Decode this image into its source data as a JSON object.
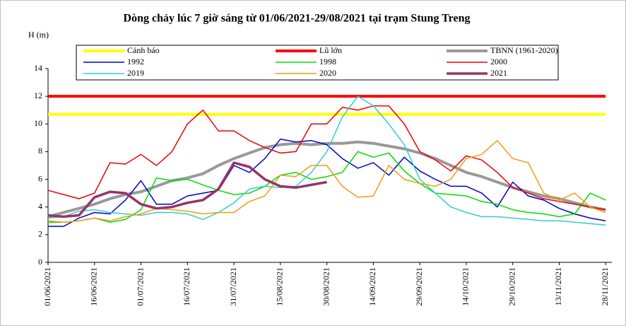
{
  "chart_data": {
    "type": "line",
    "title": "Dòng chảy lúc 7 giờ sáng từ 01/06/2021-29/08/2021 tại trạm Stung Treng",
    "y_label": "H (m)",
    "x": [
      "2021-06-01",
      "2021-06-06",
      "2021-06-11",
      "2021-06-16",
      "2021-06-21",
      "2021-06-26",
      "2021-07-01",
      "2021-07-06",
      "2021-07-11",
      "2021-07-16",
      "2021-07-21",
      "2021-07-26",
      "2021-07-31",
      "2021-08-05",
      "2021-08-10",
      "2021-08-15",
      "2021-08-20",
      "2021-08-25",
      "2021-08-30",
      "2021-09-04",
      "2021-09-09",
      "2021-09-14",
      "2021-09-19",
      "2021-09-24",
      "2021-09-29",
      "2021-10-04",
      "2021-10-09",
      "2021-10-14",
      "2021-10-19",
      "2021-10-24",
      "2021-10-29",
      "2021-11-03",
      "2021-11-08",
      "2021-11-13",
      "2021-11-18",
      "2021-11-23",
      "2021-11-28"
    ],
    "xlim": [
      "2021-06-01",
      "2021-11-30"
    ],
    "xticks": [
      {
        "value": "2021-06-01",
        "label": "01/06/2021"
      },
      {
        "value": "2021-06-16",
        "label": "16/06/2021"
      },
      {
        "value": "2021-07-01",
        "label": "01/07/2021"
      },
      {
        "value": "2021-07-16",
        "label": "16/07/2021"
      },
      {
        "value": "2021-07-31",
        "label": "31/07/2021"
      },
      {
        "value": "2021-08-15",
        "label": "15/08/2021"
      },
      {
        "value": "2021-08-30",
        "label": "30/08/2021"
      },
      {
        "value": "2021-09-14",
        "label": "14/09/2021"
      },
      {
        "value": "2021-09-29",
        "label": "29/09/2021"
      },
      {
        "value": "2021-10-14",
        "label": "14/10/2021"
      },
      {
        "value": "2021-10-29",
        "label": "29/10/2021"
      },
      {
        "value": "2021-11-13",
        "label": "13/11/2021"
      },
      {
        "value": "2021-11-28",
        "label": "28/11/2021"
      }
    ],
    "ylim": [
      0,
      14
    ],
    "yticks": [
      0,
      2,
      4,
      6,
      8,
      10,
      12,
      14
    ],
    "grid": false,
    "series": [
      {
        "name": "Cảnh báo",
        "color": "#ffff00",
        "width": 4,
        "values": [
          10.7,
          10.7,
          10.7,
          10.7,
          10.7,
          10.7,
          10.7,
          10.7,
          10.7,
          10.7,
          10.7,
          10.7,
          10.7,
          10.7,
          10.7,
          10.7,
          10.7,
          10.7,
          10.7,
          10.7,
          10.7,
          10.7,
          10.7,
          10.7,
          10.7,
          10.7,
          10.7,
          10.7,
          10.7,
          10.7,
          10.7,
          10.7,
          10.7,
          10.7,
          10.7,
          10.7,
          10.7
        ]
      },
      {
        "name": "Lũ lớn",
        "color": "#ff0000",
        "width": 4,
        "values": [
          12,
          12,
          12,
          12,
          12,
          12,
          12,
          12,
          12,
          12,
          12,
          12,
          12,
          12,
          12,
          12,
          12,
          12,
          12,
          12,
          12,
          12,
          12,
          12,
          12,
          12,
          12,
          12,
          12,
          12,
          12,
          12,
          12,
          12,
          12,
          12,
          12
        ]
      },
      {
        "name": "TBNN (1961-2020)",
        "color": "#999999",
        "width": 4,
        "values": [
          3.3,
          3.6,
          3.9,
          4.2,
          4.6,
          4.9,
          5.1,
          5.5,
          5.9,
          6.1,
          6.4,
          7.0,
          7.5,
          7.9,
          8.3,
          8.5,
          8.6,
          8.5,
          8.6,
          8.6,
          8.7,
          8.6,
          8.4,
          8.2,
          7.9,
          7.5,
          7.0,
          6.5,
          6.2,
          5.8,
          5.4,
          5.1,
          4.8,
          4.6,
          4.3,
          4.0,
          3.8
        ]
      },
      {
        "name": "1992",
        "color": "#0000cc",
        "width": 1.5,
        "values": [
          2.6,
          2.6,
          3.2,
          3.6,
          3.5,
          4.5,
          5.9,
          4.2,
          4.2,
          4.8,
          5.0,
          5.2,
          7.0,
          6.5,
          7.5,
          8.9,
          8.7,
          8.8,
          8.5,
          7.5,
          6.8,
          7.2,
          6.3,
          7.6,
          6.6,
          6.0,
          5.5,
          5.5,
          5.0,
          4.0,
          5.8,
          4.8,
          4.5,
          3.9,
          3.5,
          3.2,
          3.0
        ]
      },
      {
        "name": "1998",
        "color": "#00dd00",
        "width": 1.5,
        "values": [
          2.9,
          2.9,
          3.0,
          3.2,
          2.9,
          3.1,
          3.8,
          6.1,
          5.9,
          6.0,
          5.6,
          5.2,
          4.9,
          5.0,
          5.5,
          6.3,
          6.5,
          6.0,
          6.2,
          6.5,
          8.0,
          7.6,
          7.9,
          6.6,
          5.7,
          5.0,
          4.9,
          4.8,
          4.4,
          4.2,
          3.8,
          3.6,
          3.5,
          3.3,
          3.5,
          5.0,
          4.5
        ]
      },
      {
        "name": "2000",
        "color": "#ee0000",
        "width": 1.5,
        "values": [
          5.2,
          4.9,
          4.6,
          5.0,
          7.2,
          7.1,
          7.8,
          7.0,
          8.0,
          10.0,
          11.0,
          9.5,
          9.5,
          8.8,
          8.3,
          7.9,
          8.0,
          10.0,
          10.0,
          11.2,
          11.0,
          11.3,
          11.3,
          10.0,
          8.0,
          7.4,
          6.6,
          7.7,
          7.4,
          6.5,
          5.4,
          5.0,
          4.6,
          4.4,
          4.2,
          4.0,
          3.8
        ]
      },
      {
        "name": "2019",
        "color": "#33cccc",
        "width": 1.5,
        "values": [
          3.2,
          3.3,
          3.7,
          3.8,
          3.6,
          3.5,
          3.4,
          3.6,
          3.6,
          3.5,
          3.1,
          3.6,
          4.3,
          5.3,
          5.5,
          5.4,
          5.5,
          6.5,
          8.0,
          10.5,
          12.0,
          11.3,
          10.0,
          8.5,
          6.0,
          5.0,
          4.0,
          3.6,
          3.3,
          3.3,
          3.2,
          3.1,
          3.0,
          3.0,
          2.9,
          2.8,
          2.7
        ]
      },
      {
        "name": "2020",
        "color": "#f39c12",
        "width": 1.5,
        "values": [
          3.0,
          2.9,
          3.0,
          3.2,
          3.0,
          3.3,
          3.5,
          3.9,
          3.8,
          3.7,
          3.5,
          3.6,
          3.6,
          4.4,
          4.8,
          6.3,
          6.2,
          7.0,
          7.0,
          5.5,
          4.7,
          4.8,
          7.0,
          6.0,
          5.7,
          5.5,
          6.0,
          7.5,
          7.8,
          8.8,
          7.5,
          7.2,
          5.0,
          4.5,
          5.0,
          4.0,
          3.6
        ]
      },
      {
        "name": "2021",
        "color": "#993366",
        "width": 3.5,
        "values": [
          3.4,
          3.3,
          3.4,
          4.7,
          5.1,
          5.0,
          4.2,
          3.9,
          4.0,
          4.3,
          4.5,
          5.3,
          7.2,
          6.9,
          6.0,
          5.5,
          5.4,
          5.6,
          5.8,
          null,
          null,
          null,
          null,
          null,
          null,
          null,
          null,
          null,
          null,
          null,
          null,
          null,
          null,
          null,
          null,
          null,
          null
        ]
      }
    ]
  }
}
